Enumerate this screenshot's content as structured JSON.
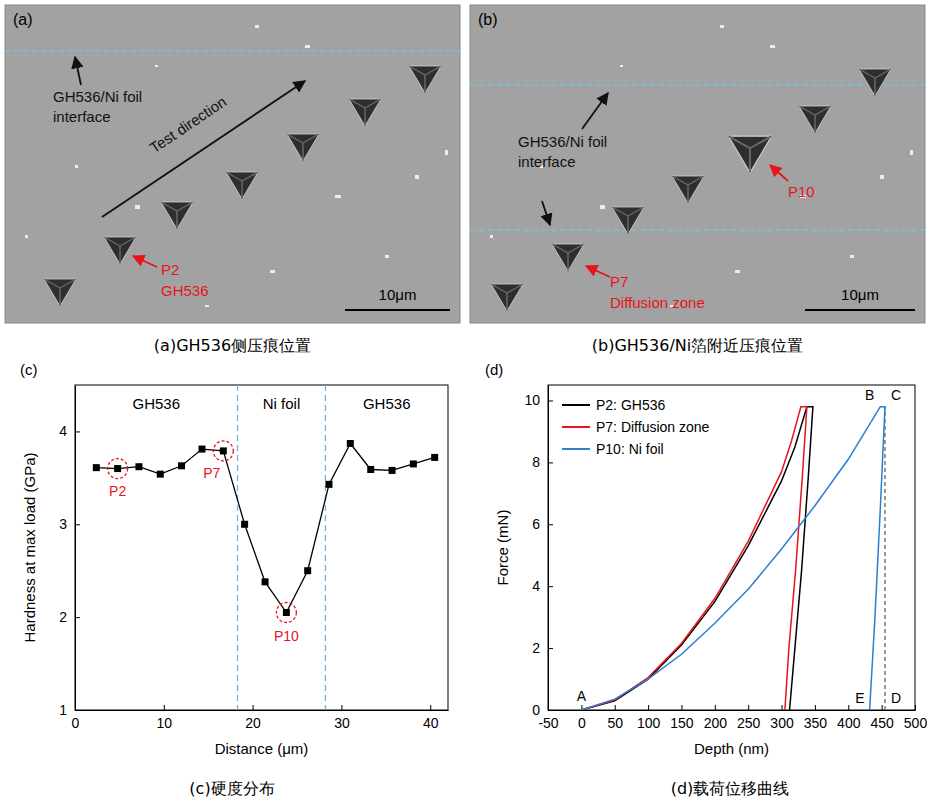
{
  "images": [
    {
      "letter": "(a)",
      "caption": "(a)GH536侧压痕位置",
      "interface_label": [
        "GH536/Ni foil",
        "interface"
      ],
      "arrow_label": "Test direction",
      "points": [
        {
          "label_lines": [
            "P2",
            "GH536"
          ]
        }
      ],
      "scale_bar": "10μm"
    },
    {
      "letter": "(b)",
      "caption": "(b)GH536/Ni箔附近压痕位置",
      "interface_label": [
        "GH536/Ni foil",
        "interface"
      ],
      "points": [
        {
          "label_lines": [
            "P10"
          ]
        },
        {
          "label_lines": [
            "P7",
            "Diffusion zone"
          ]
        }
      ],
      "scale_bar": "10μm"
    }
  ],
  "chart_data": [
    {
      "type": "line",
      "letter": "(c)",
      "caption": "(c)硬度分布",
      "x_label": "Distance (μm)",
      "y_label": "Hardness at max load (GPa)",
      "xlim": [
        0,
        42
      ],
      "xticks": [
        0,
        10,
        20,
        30,
        40
      ],
      "ylim": [
        1,
        4.5
      ],
      "yticks": [
        1,
        2,
        3,
        4
      ],
      "x": [
        2.4,
        4.8,
        7.2,
        9.6,
        12,
        14.3,
        16.7,
        19.1,
        21.4,
        23.8,
        26.2,
        28.6,
        31,
        33.3,
        35.7,
        38.1,
        40.5
      ],
      "values": [
        3.61,
        3.6,
        3.62,
        3.54,
        3.63,
        3.81,
        3.79,
        3.0,
        2.38,
        2.05,
        2.5,
        3.43,
        3.87,
        3.59,
        3.58,
        3.65,
        3.72
      ],
      "color": "#000000",
      "marker": "square",
      "boundaries": [
        18.3,
        28.2
      ],
      "regions": [
        "GH536",
        "Ni foil",
        "GH536"
      ],
      "annotations": [
        {
          "text": "P2",
          "point": 1
        },
        {
          "text": "P7",
          "point": 6
        },
        {
          "text": "P10",
          "point": 9
        }
      ]
    },
    {
      "type": "line",
      "letter": "(d)",
      "caption": "(d)载荷位移曲线",
      "x_label": "Depth (nm)",
      "y_label": "Force (mN)",
      "xlim": [
        -50,
        500
      ],
      "xticks": [
        -50,
        0,
        50,
        100,
        150,
        200,
        250,
        300,
        350,
        400,
        450,
        500
      ],
      "ylim": [
        0,
        10.5
      ],
      "yticks": [
        0,
        2,
        4,
        6,
        8,
        10
      ],
      "legend": "top-left",
      "series": [
        {
          "name": "P2: GH536",
          "color": "#000000",
          "x": [
            0,
            50,
            100,
            150,
            200,
            250,
            300,
            320,
            338,
            347,
            340,
            330,
            320,
            312
          ],
          "values": [
            0,
            0.3,
            1.0,
            2.1,
            3.5,
            5.3,
            7.4,
            8.5,
            9.8,
            9.8,
            7.5,
            4.5,
            2.0,
            0
          ]
        },
        {
          "name": "P7: Diffusion zone",
          "color": "#e8141c",
          "x": [
            0,
            50,
            100,
            150,
            200,
            250,
            300,
            315,
            329,
            338,
            331,
            321,
            311,
            305
          ],
          "values": [
            0,
            0.32,
            1.05,
            2.15,
            3.6,
            5.45,
            7.7,
            8.7,
            9.8,
            9.8,
            7.5,
            4.5,
            2.0,
            0
          ]
        },
        {
          "name": "P10: Ni foil",
          "color": "#2a7fd4",
          "x": [
            0,
            50,
            100,
            150,
            200,
            250,
            300,
            350,
            400,
            448,
            455,
            448,
            440,
            432
          ],
          "values": [
            0,
            0.35,
            1.0,
            1.8,
            2.8,
            3.9,
            5.2,
            6.6,
            8.1,
            9.8,
            9.8,
            6.5,
            3.0,
            0
          ]
        }
      ],
      "point_labels": [
        {
          "text": "A",
          "x": 0,
          "y": 0
        },
        {
          "text": "B",
          "x": 448,
          "y": 9.8
        },
        {
          "text": "C",
          "x": 455,
          "y": 9.8
        },
        {
          "text": "D",
          "x": 455,
          "y": 0
        },
        {
          "text": "E",
          "x": 432,
          "y": 0
        }
      ],
      "reference_lines": [
        {
          "x": 455,
          "y": [
            0,
            9.8
          ]
        }
      ]
    }
  ]
}
